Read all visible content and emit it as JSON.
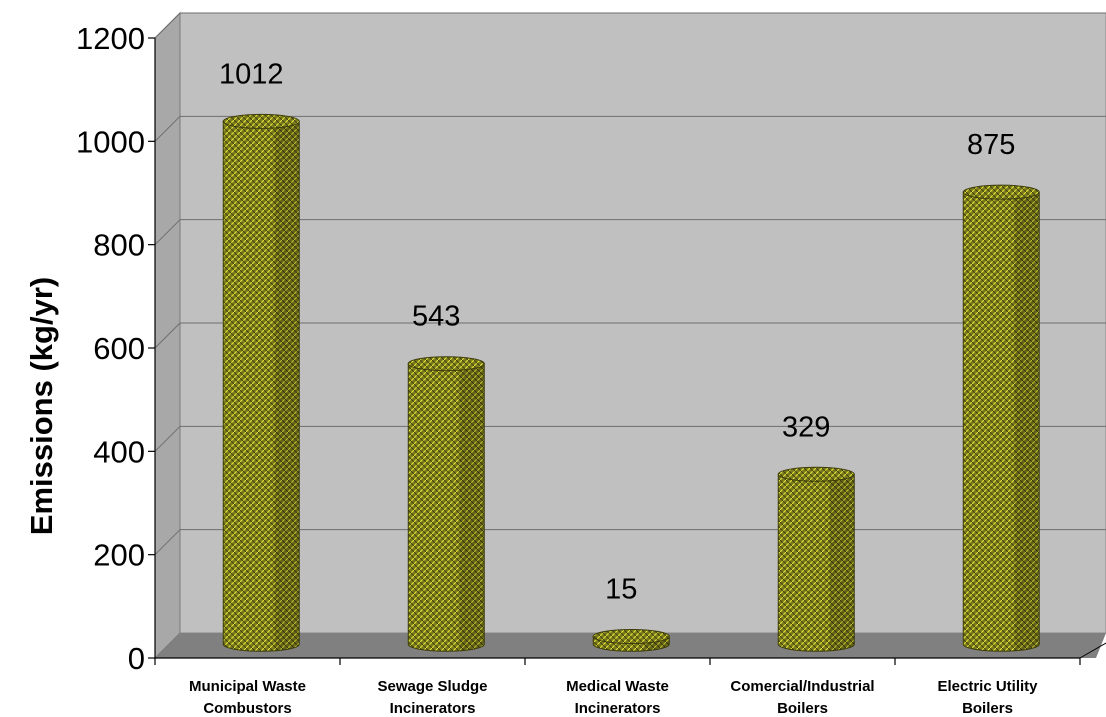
{
  "colors": {
    "plot_background": "#c0c0c0",
    "side_wall": "#a8a8a8",
    "floor": "#808080",
    "gridline": "#6e6e6e",
    "bar_fill": "#7a7a1e",
    "bar_pattern": "#e8e838",
    "bar_outline": "#3c3c0a"
  },
  "chart_data": {
    "type": "bar",
    "style": "3d-cylinder",
    "categories": [
      [
        "Municipal Waste",
        "Combustors"
      ],
      [
        "Sewage Sludge",
        "Incinerators"
      ],
      [
        "Medical Waste",
        "Incinerators"
      ],
      [
        "Comercial/Industrial",
        "Boilers"
      ],
      [
        "Electric Utility",
        "Boilers"
      ]
    ],
    "values": [
      1012,
      543,
      15,
      329,
      875
    ],
    "data_labels": [
      "1012",
      "543",
      "15",
      "329",
      "875"
    ],
    "title": "",
    "xlabel": "",
    "ylabel": "Emissions (kg/yr)",
    "ylim": [
      0,
      1200
    ],
    "yticks": [
      0,
      200,
      400,
      600,
      800,
      1000,
      1200
    ],
    "grid": true,
    "legend": "none"
  }
}
